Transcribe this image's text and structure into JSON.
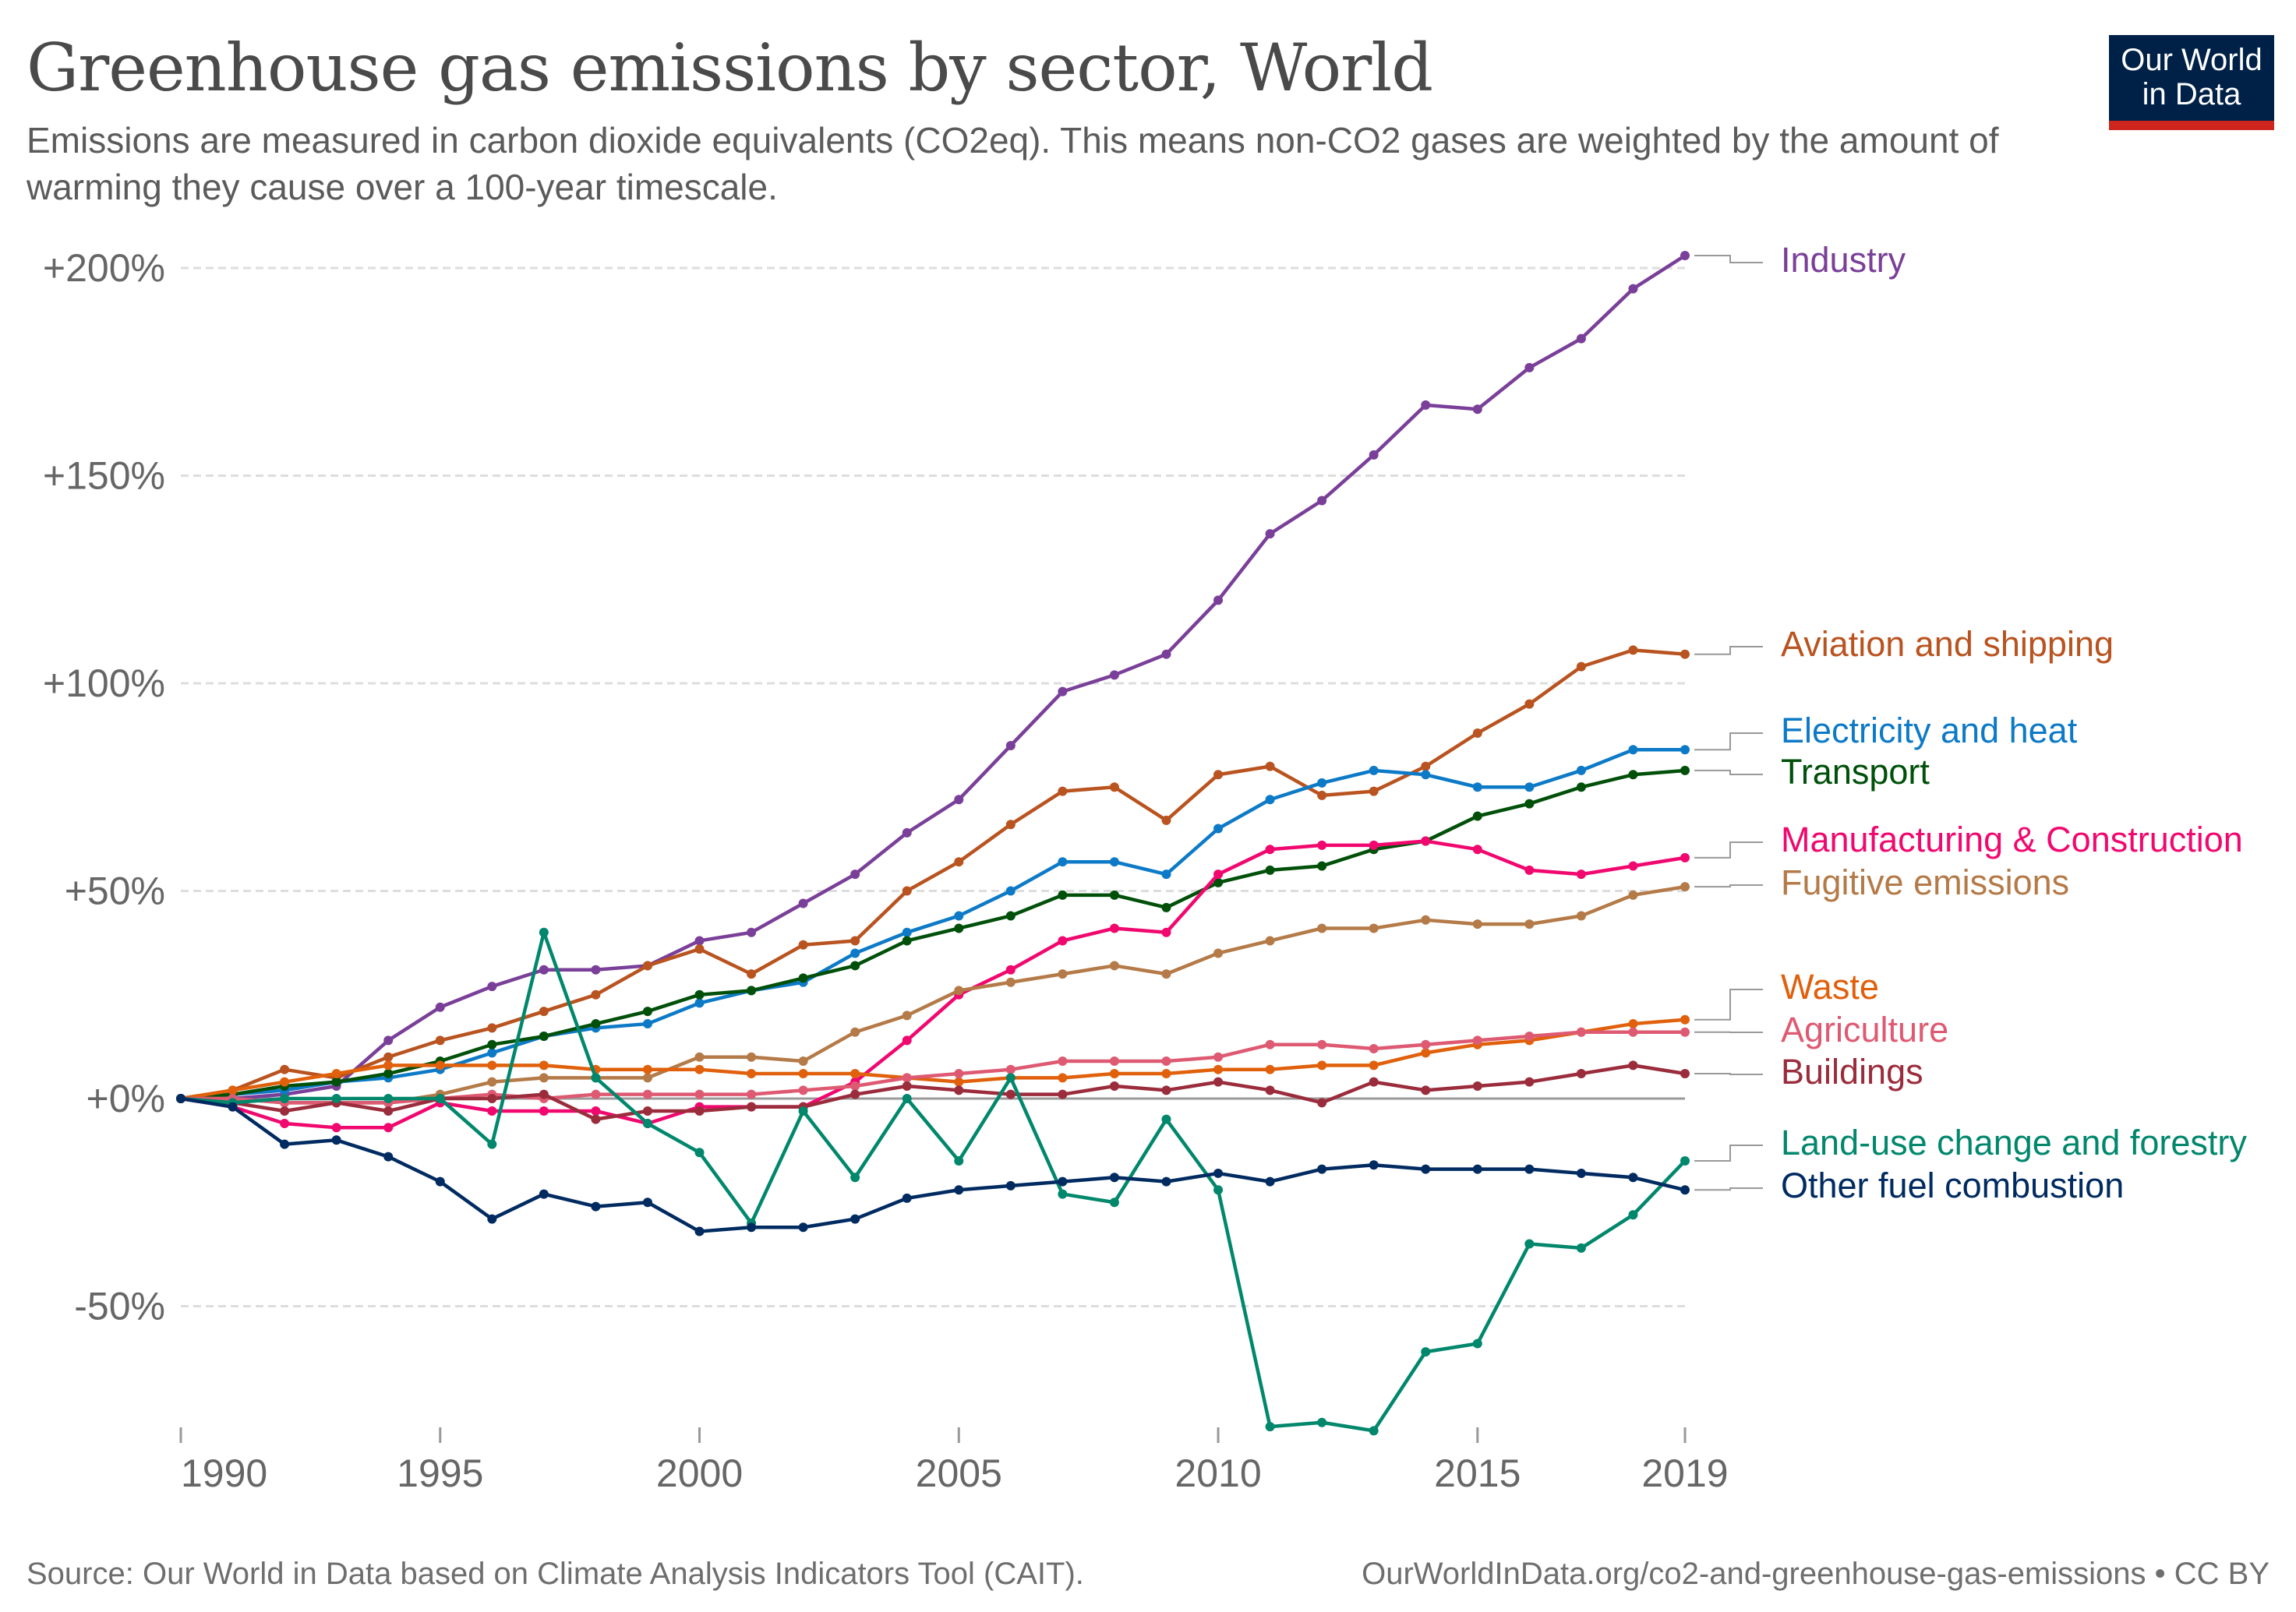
{
  "header": {
    "title": "Greenhouse gas emissions by sector, World",
    "subtitle": "Emissions are measured in carbon dioxide equivalents (CO2eq). This means non-CO2 gases are weighted by the amount of warming they cause over a 100-year timescale.",
    "logo_text": "Our World in Data"
  },
  "footer": {
    "source": "Source: Our World in Data based on Climate Analysis Indicators Tool (CAIT).",
    "url": "OurWorldInData.org/co2-and-greenhouse-gas-emissions • CC BY"
  },
  "chart_data": {
    "type": "line",
    "title": "Greenhouse gas emissions by sector, World",
    "xlabel": "",
    "ylabel": "",
    "x": [
      1990,
      1991,
      1992,
      1993,
      1994,
      1995,
      1996,
      1997,
      1998,
      1999,
      2000,
      2001,
      2002,
      2003,
      2004,
      2005,
      2006,
      2007,
      2008,
      2009,
      2010,
      2011,
      2012,
      2013,
      2014,
      2015,
      2016,
      2017,
      2018,
      2019
    ],
    "x_ticks": [
      1990,
      1995,
      2000,
      2005,
      2010,
      2015,
      2019
    ],
    "y_ticks": [
      200,
      150,
      100,
      50,
      0,
      -50
    ],
    "y_tick_labels": [
      "+200%",
      "+150%",
      "+100%",
      "+50%",
      "+0%",
      "-50%"
    ],
    "ylim": [
      -80,
      205
    ],
    "xlim": [
      1990,
      2019
    ],
    "grid": "horizontal dashed",
    "legend": "right, line-end labels",
    "series": [
      {
        "name": "Industry",
        "color": "#7a3f98",
        "values": [
          0,
          0,
          1,
          3,
          14,
          22,
          27,
          31,
          31,
          32,
          38,
          40,
          47,
          54,
          64,
          72,
          85,
          98,
          102,
          107,
          120,
          136,
          144,
          155,
          167,
          166,
          176,
          183,
          195,
          203
        ]
      },
      {
        "name": "Aviation and shipping",
        "color": "#b9531f",
        "values": [
          0,
          2,
          7,
          5,
          10,
          14,
          17,
          21,
          25,
          32,
          36,
          30,
          37,
          38,
          50,
          57,
          66,
          74,
          75,
          67,
          78,
          80,
          73,
          74,
          80,
          88,
          95,
          104,
          108,
          107
        ]
      },
      {
        "name": "Electricity and heat",
        "color": "#0d7ac7",
        "values": [
          0,
          1,
          2,
          4,
          5,
          7,
          11,
          15,
          17,
          18,
          23,
          26,
          28,
          35,
          40,
          44,
          50,
          57,
          57,
          54,
          65,
          72,
          76,
          79,
          78,
          75,
          75,
          79,
          84,
          84
        ]
      },
      {
        "name": "Transport",
        "color": "#00500a",
        "values": [
          0,
          1,
          3,
          4,
          6,
          9,
          13,
          15,
          18,
          21,
          25,
          26,
          29,
          32,
          38,
          41,
          44,
          49,
          49,
          46,
          52,
          55,
          56,
          60,
          62,
          68,
          71,
          75,
          78,
          79
        ]
      },
      {
        "name": "Manufacturing & Construction",
        "color": "#f0086f",
        "values": [
          0,
          -2,
          -6,
          -7,
          -7,
          -1,
          -3,
          -3,
          -3,
          -6,
          -2,
          -2,
          -2,
          4,
          14,
          25,
          31,
          38,
          41,
          40,
          54,
          60,
          61,
          61,
          62,
          60,
          55,
          54,
          56,
          58
        ]
      },
      {
        "name": "Fugitive emissions",
        "color": "#b47a48",
        "values": [
          0,
          0,
          -1,
          -1,
          -1,
          1,
          4,
          5,
          5,
          5,
          10,
          10,
          9,
          16,
          20,
          26,
          28,
          30,
          32,
          30,
          35,
          38,
          41,
          41,
          43,
          42,
          42,
          44,
          49,
          51
        ]
      },
      {
        "name": "Waste",
        "color": "#e0600b",
        "values": [
          0,
          2,
          4,
          6,
          8,
          8,
          8,
          8,
          7,
          7,
          7,
          6,
          6,
          6,
          5,
          4,
          5,
          5,
          6,
          6,
          7,
          7,
          8,
          8,
          11,
          13,
          14,
          16,
          18,
          19
        ]
      },
      {
        "name": "Agriculture",
        "color": "#de5a72",
        "values": [
          0,
          0,
          -1,
          -1,
          -1,
          0,
          1,
          0,
          1,
          1,
          1,
          1,
          2,
          3,
          5,
          6,
          7,
          9,
          9,
          9,
          10,
          13,
          13,
          12,
          13,
          14,
          15,
          16,
          16,
          16
        ]
      },
      {
        "name": "Buildings",
        "color": "#9b2c3c",
        "values": [
          0,
          -1,
          -3,
          -1,
          -3,
          0,
          0,
          1,
          -5,
          -3,
          -3,
          -2,
          -2,
          1,
          3,
          2,
          1,
          1,
          3,
          2,
          4,
          2,
          -1,
          4,
          2,
          3,
          4,
          6,
          8,
          6
        ]
      },
      {
        "name": "Land-use change and forestry",
        "color": "#00876c",
        "values": [
          0,
          -1,
          0,
          0,
          0,
          0,
          -11,
          40,
          5,
          -6,
          -13,
          -30,
          -3,
          -19,
          0,
          -15,
          5,
          -23,
          -25,
          -5,
          -22,
          -79,
          -78,
          -80,
          -61,
          -59,
          -35,
          -36,
          -28,
          -15
        ]
      },
      {
        "name": "Other fuel combustion",
        "color": "#002b61",
        "values": [
          0,
          -2,
          -11,
          -10,
          -14,
          -20,
          -29,
          -23,
          -26,
          -25,
          -32,
          -31,
          -31,
          -29,
          -24,
          -22,
          -21,
          -20,
          -19,
          -20,
          -18,
          -20,
          -17,
          -16,
          -17,
          -17,
          -17,
          -18,
          -19,
          -22
        ]
      }
    ]
  }
}
